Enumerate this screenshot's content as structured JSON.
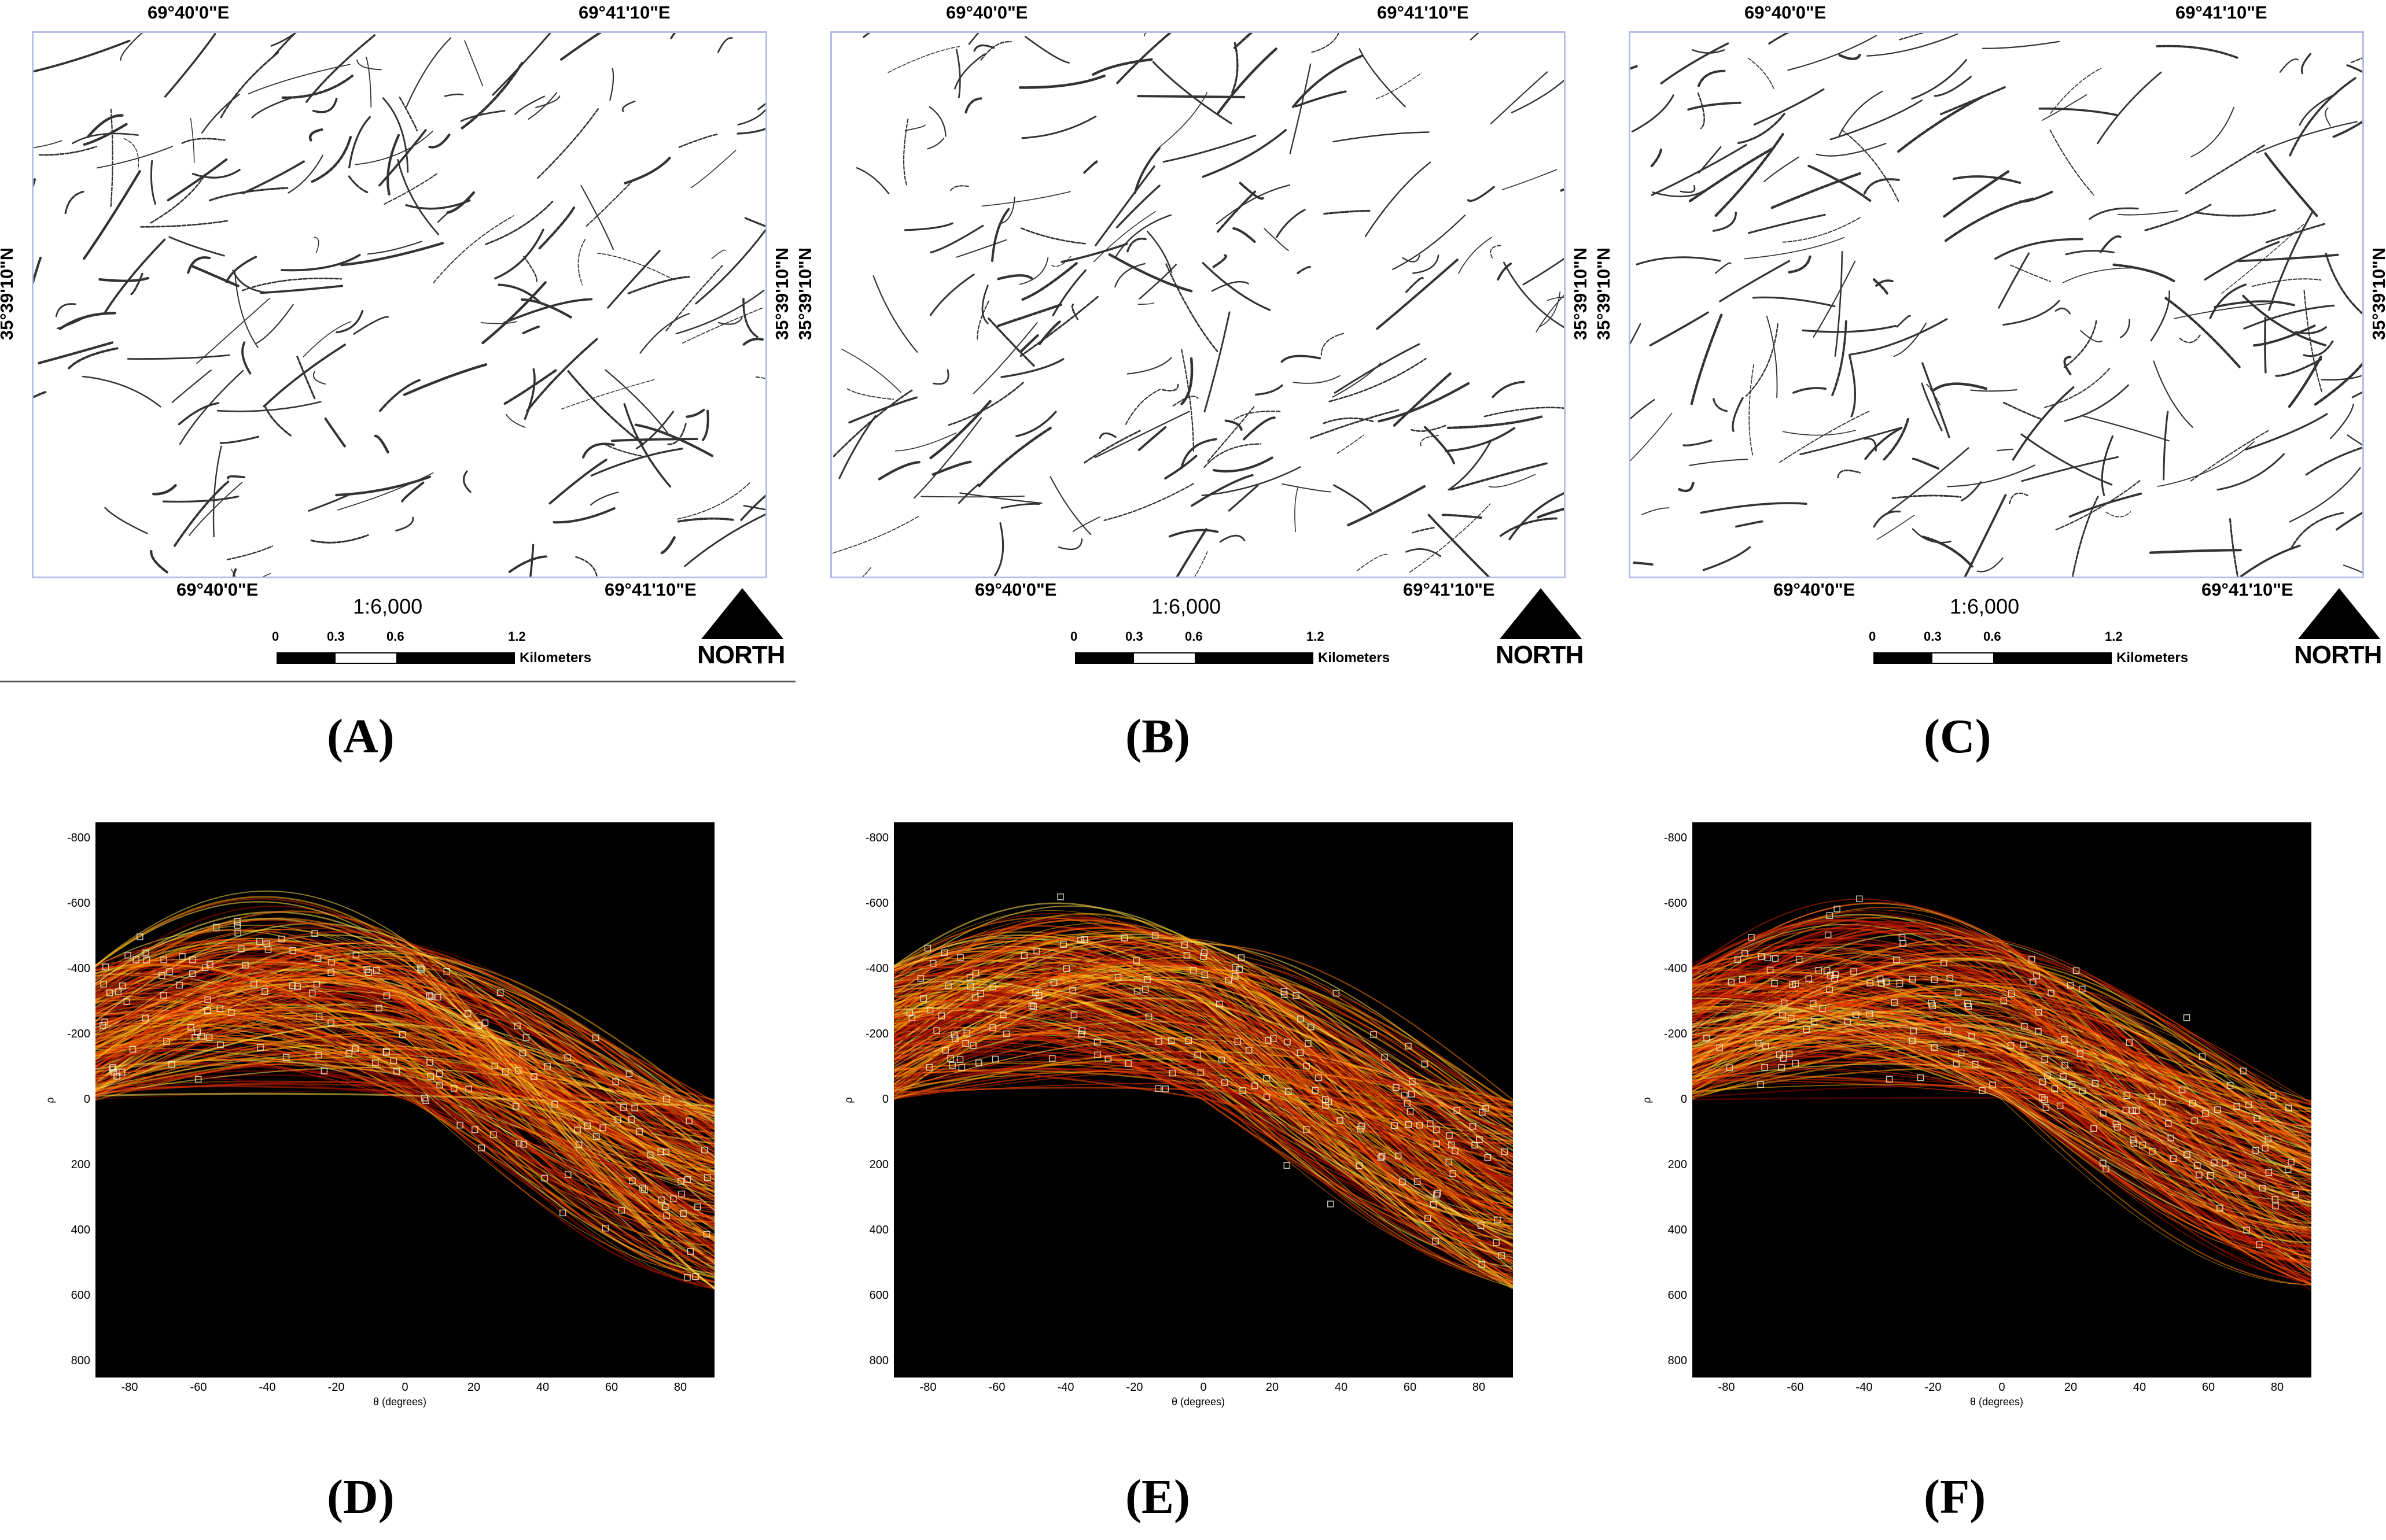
{
  "maps": [
    {
      "label": "(A)",
      "top_lon_left": "69°40'0\"E",
      "top_lon_right": "69°41'10\"E",
      "bottom_lon_left": "69°40'0\"E",
      "bottom_lon_right": "69°41'10\"E",
      "lat_left": "35°39'10\"N",
      "lat_right": "35°39'10\"N",
      "scale": "1:6,000",
      "ticks": [
        "0",
        "0.3",
        "0.6",
        "1.2"
      ],
      "unit": "Kilometers",
      "north": "NORTH"
    },
    {
      "label": "(B)",
      "top_lon_left": "69°40'0\"E",
      "top_lon_right": "69°41'10\"E",
      "bottom_lon_left": "69°40'0\"E",
      "bottom_lon_right": "69°41'10\"E",
      "lat_left": "35°39'10\"N",
      "lat_right": "35°39'10\"N",
      "scale": "1:6,000",
      "ticks": [
        "0",
        "0.3",
        "0.6",
        "1.2"
      ],
      "unit": "Kilometers",
      "north": "NORTH"
    },
    {
      "label": "(C)",
      "top_lon_left": "69°40'0\"E",
      "top_lon_right": "69°41'10\"E",
      "bottom_lon_left": "69°40'0\"E",
      "bottom_lon_right": "69°41'10\"E",
      "lat_left": "35°39'10\"N",
      "lat_right": "35°39'10\"N",
      "scale": "1:6,000",
      "ticks": [
        "0",
        "0.3",
        "0.6",
        "1.2"
      ],
      "unit": "Kilometers",
      "north": "NORTH"
    }
  ],
  "hough": [
    {
      "label": "(D)"
    },
    {
      "label": "(E)"
    },
    {
      "label": "(F)"
    }
  ],
  "chart_data": {
    "type": "heatmap",
    "xlabel": "θ (degrees)",
    "ylabel": "ρ",
    "x_ticks": [
      "-80",
      "-60",
      "-40",
      "-20",
      "0",
      "20",
      "40",
      "60",
      "80"
    ],
    "y_ticks": [
      "-800",
      "-600",
      "-400",
      "-200",
      "0",
      "200",
      "400",
      "600",
      "800"
    ],
    "xlim": [
      -90,
      90
    ],
    "ylim": [
      850,
      -850
    ],
    "colormap": "hot",
    "colors": {
      "background": "#000000",
      "low": "#8b0000",
      "mid": "#ff4500",
      "high": "#ffff66",
      "peak_marker": "#ffffff"
    }
  }
}
